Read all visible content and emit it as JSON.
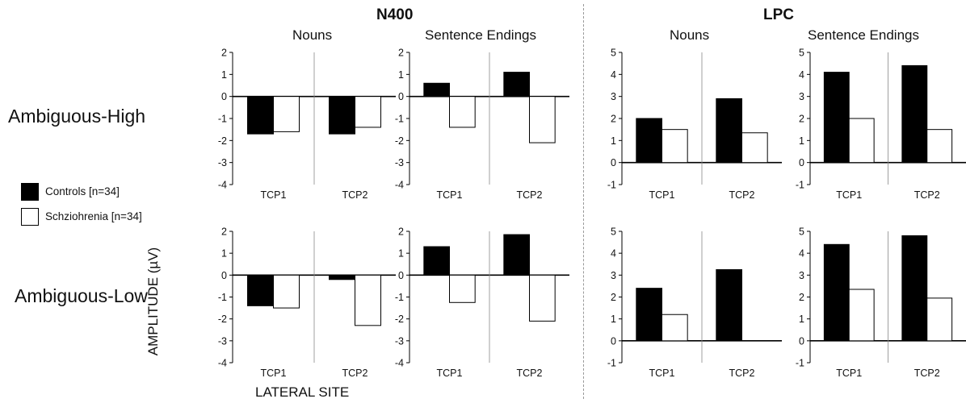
{
  "labels": {
    "group_n400": "N400",
    "group_lpc": "LPC",
    "nouns": "Nouns",
    "sentence_endings": "Sentence Endings",
    "row_high": "Ambiguous-High",
    "row_low": "Ambiguous-Low",
    "ylabel": "AMPLITUDE (µV)",
    "xlabel": "LATERAL SITE"
  },
  "legend": {
    "controls": "Controls [n=34]",
    "schizophrenia": "Schziohrenia [n=34]"
  },
  "colors": {
    "controls": "#000000",
    "schizophrenia": "#ffffff"
  },
  "chart_data": [
    {
      "type": "bar",
      "component": "N400",
      "condition": "Ambiguous-High",
      "word_type": "Nouns",
      "categories": [
        "TCP1",
        "TCP2"
      ],
      "ylim": [
        -4,
        2
      ],
      "ticks": [
        2,
        1,
        0,
        -1,
        -2,
        -3,
        -4
      ],
      "series": [
        {
          "name": "Controls [n=34]",
          "values": [
            -1.7,
            -1.7
          ]
        },
        {
          "name": "Schziohrenia [n=34]",
          "values": [
            -1.6,
            -1.4
          ]
        }
      ]
    },
    {
      "type": "bar",
      "component": "N400",
      "condition": "Ambiguous-High",
      "word_type": "Sentence Endings",
      "categories": [
        "TCP1",
        "TCP2"
      ],
      "ylim": [
        -4,
        2
      ],
      "ticks": [
        2,
        1,
        0,
        -1,
        -2,
        -3,
        -4
      ],
      "series": [
        {
          "name": "Controls [n=34]",
          "values": [
            0.6,
            1.1
          ]
        },
        {
          "name": "Schziohrenia [n=34]",
          "values": [
            -1.4,
            -2.1
          ]
        }
      ]
    },
    {
      "type": "bar",
      "component": "LPC",
      "condition": "Ambiguous-High",
      "word_type": "Nouns",
      "categories": [
        "TCP1",
        "TCP2"
      ],
      "ylim": [
        -1,
        5
      ],
      "ticks": [
        5,
        4,
        3,
        2,
        1,
        0,
        -1
      ],
      "series": [
        {
          "name": "Controls [n=34]",
          "values": [
            2.0,
            2.9
          ]
        },
        {
          "name": "Schziohrenia [n=34]",
          "values": [
            1.5,
            1.35
          ]
        }
      ]
    },
    {
      "type": "bar",
      "component": "LPC",
      "condition": "Ambiguous-High",
      "word_type": "Sentence Endings",
      "categories": [
        "TCP1",
        "TCP2"
      ],
      "ylim": [
        -1,
        5
      ],
      "ticks": [
        5,
        4,
        3,
        2,
        1,
        0,
        -1
      ],
      "series": [
        {
          "name": "Controls [n=34]",
          "values": [
            4.1,
            4.4
          ]
        },
        {
          "name": "Schziohrenia [n=34]",
          "values": [
            2.0,
            1.5
          ]
        }
      ]
    },
    {
      "type": "bar",
      "component": "N400",
      "condition": "Ambiguous-Low",
      "word_type": "Nouns",
      "categories": [
        "TCP1",
        "TCP2"
      ],
      "ylim": [
        -4,
        2
      ],
      "ticks": [
        2,
        1,
        0,
        -1,
        -2,
        -3,
        -4
      ],
      "series": [
        {
          "name": "Controls [n=34]",
          "values": [
            -1.4,
            -0.2
          ]
        },
        {
          "name": "Schziohrenia [n=34]",
          "values": [
            -1.5,
            -2.3
          ]
        }
      ]
    },
    {
      "type": "bar",
      "component": "N400",
      "condition": "Ambiguous-Low",
      "word_type": "Sentence Endings",
      "categories": [
        "TCP1",
        "TCP2"
      ],
      "ylim": [
        -4,
        2
      ],
      "ticks": [
        2,
        1,
        0,
        -1,
        -2,
        -3,
        -4
      ],
      "series": [
        {
          "name": "Controls [n=34]",
          "values": [
            1.3,
            1.85
          ]
        },
        {
          "name": "Schziohrenia [n=34]",
          "values": [
            -1.25,
            -2.1
          ]
        }
      ]
    },
    {
      "type": "bar",
      "component": "LPC",
      "condition": "Ambiguous-Low",
      "word_type": "Nouns",
      "categories": [
        "TCP1",
        "TCP2"
      ],
      "ylim": [
        -1,
        5
      ],
      "ticks": [
        5,
        4,
        3,
        2,
        1,
        0,
        -1
      ],
      "series": [
        {
          "name": "Controls [n=34]",
          "values": [
            2.4,
            3.25
          ]
        },
        {
          "name": "Schziohrenia [n=34]",
          "values": [
            1.2,
            0.0
          ]
        }
      ]
    },
    {
      "type": "bar",
      "component": "LPC",
      "condition": "Ambiguous-Low",
      "word_type": "Sentence Endings",
      "categories": [
        "TCP1",
        "TCP2"
      ],
      "ylim": [
        -1,
        5
      ],
      "ticks": [
        5,
        4,
        3,
        2,
        1,
        0,
        -1
      ],
      "series": [
        {
          "name": "Controls [n=34]",
          "values": [
            4.4,
            4.8
          ]
        },
        {
          "name": "Schziohrenia [n=34]",
          "values": [
            2.35,
            1.95
          ]
        }
      ]
    }
  ]
}
